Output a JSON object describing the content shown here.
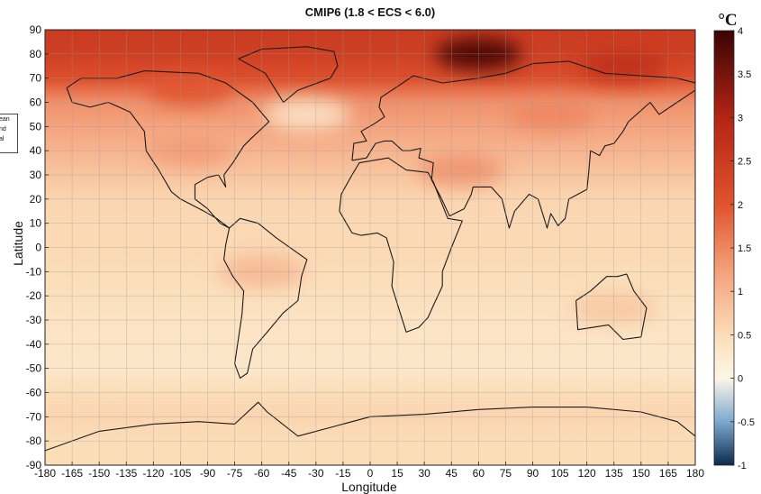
{
  "map": {
    "title": "CMIP6 (1.8 < ECS < 6.0)",
    "xlabel": "Longitude",
    "ylabel": "Latitude",
    "legend_text": [
      "ean",
      "nd",
      "al"
    ],
    "projection": "equirectangular",
    "grid": true,
    "x_ticks": [
      -180,
      -165,
      -150,
      -135,
      -120,
      -105,
      -90,
      -75,
      -60,
      -45,
      -30,
      -15,
      0,
      15,
      30,
      45,
      60,
      75,
      90,
      105,
      120,
      135,
      150,
      165,
      180
    ],
    "y_ticks": [
      90,
      80,
      70,
      60,
      50,
      40,
      30,
      20,
      10,
      0,
      -10,
      -20,
      -30,
      -40,
      -50,
      -60,
      -70,
      -80,
      -90
    ],
    "xlim": [
      -180,
      180
    ],
    "ylim": [
      -90,
      90
    ]
  },
  "colorbar": {
    "unit": "°C",
    "ticks": [
      4,
      3.5,
      3,
      2.5,
      2,
      1.5,
      1,
      0.5,
      0,
      -0.5,
      -1
    ],
    "range": [
      -1,
      4
    ],
    "colors": {
      "cold": "#0c2a4e",
      "cool": "#7da9cf",
      "zero": "#fdf6e8",
      "warm_light": "#fbddb8",
      "warm": "#f3a07a",
      "hot": "#e0532e",
      "very_hot": "#b42414",
      "max": "#3a0404"
    }
  },
  "anomaly_field": {
    "units": "°C",
    "zonal_mean": [
      {
        "lat": 90,
        "value": 2.5
      },
      {
        "lat": 80,
        "value": 2.4
      },
      {
        "lat": 70,
        "value": 2.1
      },
      {
        "lat": 60,
        "value": 1.4
      },
      {
        "lat": 50,
        "value": 1.2
      },
      {
        "lat": 40,
        "value": 1.0
      },
      {
        "lat": 30,
        "value": 0.8
      },
      {
        "lat": 20,
        "value": 0.6
      },
      {
        "lat": 10,
        "value": 0.55
      },
      {
        "lat": 0,
        "value": 0.55
      },
      {
        "lat": -10,
        "value": 0.5
      },
      {
        "lat": -20,
        "value": 0.45
      },
      {
        "lat": -30,
        "value": 0.4
      },
      {
        "lat": -40,
        "value": 0.35
      },
      {
        "lat": -50,
        "value": 0.3
      },
      {
        "lat": -60,
        "value": 0.5
      },
      {
        "lat": -70,
        "value": 0.6
      },
      {
        "lat": -80,
        "value": 0.5
      },
      {
        "lat": -90,
        "value": 0.5
      }
    ],
    "regional_features": [
      {
        "name": "north-atlantic-cool-spot",
        "lon": -35,
        "lat": 55,
        "value": 0.3
      },
      {
        "name": "barents-kara-warm-spot",
        "lon": 60,
        "lat": 80,
        "value": 4.0
      },
      {
        "name": "east-siberia-warm",
        "lon": 140,
        "lat": 75,
        "value": 2.8
      },
      {
        "name": "canada-warm",
        "lon": -100,
        "lat": 65,
        "value": 2.0
      },
      {
        "name": "northern-asia-warm",
        "lon": 100,
        "lat": 55,
        "value": 1.5
      },
      {
        "name": "us-warm",
        "lon": -100,
        "lat": 40,
        "value": 1.3
      },
      {
        "name": "middle-east-warm",
        "lon": 50,
        "lat": 32,
        "value": 1.4
      },
      {
        "name": "south-america-warm",
        "lon": -60,
        "lat": -10,
        "value": 1.0
      },
      {
        "name": "australia-warm",
        "lon": 135,
        "lat": -25,
        "value": 0.8
      }
    ]
  }
}
